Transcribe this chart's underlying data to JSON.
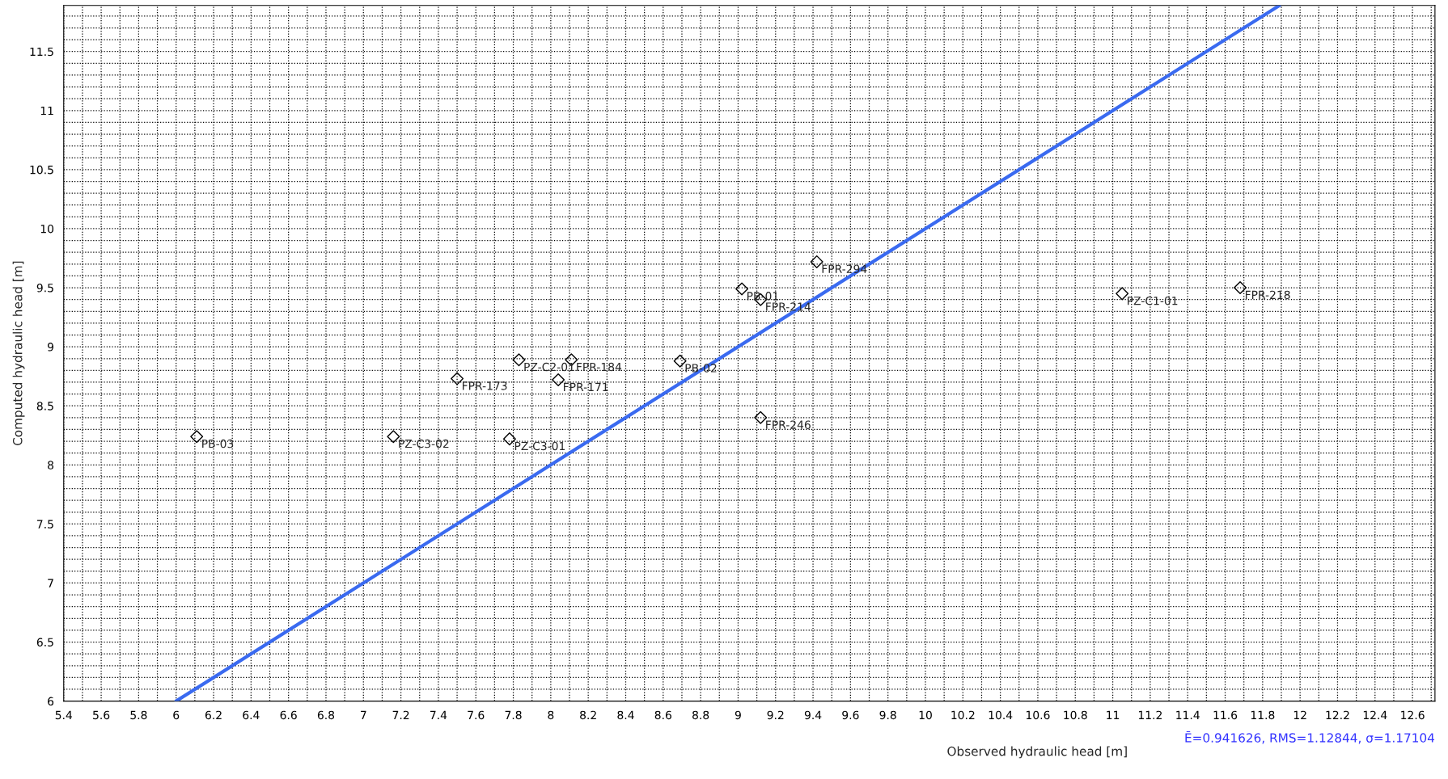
{
  "chart_data": {
    "type": "scatter",
    "xlabel": "Observed hydraulic head [m]",
    "ylabel": "Computed hydraulic head [m]",
    "x": [
      6.11,
      7.16,
      7.78,
      7.5,
      7.83,
      8.11,
      8.04,
      8.69,
      9.02,
      9.12,
      9.42,
      9.12,
      11.05,
      11.68
    ],
    "series": [
      {
        "color": "#000000",
        "marker": "diamond",
        "values": [
          8.24,
          8.24,
          8.22,
          8.73,
          8.89,
          8.89,
          8.72,
          8.88,
          9.49,
          9.4,
          9.72,
          8.4,
          9.45,
          9.5
        ],
        "value_labels": [
          "PB-03",
          "PZ-C3-02",
          "PZ-C3-01",
          "FPR-173",
          "PZ-C2-01",
          "FPR-184",
          "FPR-171",
          "PB-02",
          "PB-01",
          "FPR-214",
          "FPR-294",
          "FPR-246",
          "PZ-C1-01",
          "FPR-218"
        ]
      },
      {
        "type": "line",
        "color": "#3a6af0",
        "x": [
          6,
          11.89
        ],
        "values": [
          6,
          11.89
        ]
      }
    ],
    "annotations": [
      "Ē=0.941626, RMS=1.12844, σ=1.17104"
    ],
    "xlim": [
      5.4,
      12.72
    ],
    "ylim": [
      6,
      11.89
    ],
    "grid": true,
    "xticks": [
      5.4,
      {
        "value": 5.5,
        "label": null
      },
      5.6,
      {
        "value": 5.7,
        "label": null
      },
      5.8,
      {
        "value": 5.9,
        "label": null
      },
      6,
      {
        "value": 6.1,
        "label": null
      },
      6.2,
      {
        "value": 6.3,
        "label": null
      },
      6.4,
      {
        "value": 6.5,
        "label": null
      },
      6.6,
      {
        "value": 6.7,
        "label": null
      },
      6.8,
      {
        "value": 6.9,
        "label": null
      },
      7,
      {
        "value": 7.1,
        "label": null
      },
      7.2,
      {
        "value": 7.3,
        "label": null
      },
      7.4,
      {
        "value": 7.5,
        "label": null
      },
      7.6,
      {
        "value": 7.7,
        "label": null
      },
      7.8,
      {
        "value": 7.9,
        "label": null
      },
      8,
      {
        "value": 8.1,
        "label": null
      },
      8.2,
      {
        "value": 8.3,
        "label": null
      },
      8.4,
      {
        "value": 8.5,
        "label": null
      },
      8.6,
      {
        "value": 8.7,
        "label": null
      },
      8.8,
      {
        "value": 8.9,
        "label": null
      },
      9,
      {
        "value": 9.1,
        "label": null
      },
      9.2,
      {
        "value": 9.3,
        "label": null
      },
      9.4,
      {
        "value": 9.5,
        "label": null
      },
      9.6,
      {
        "value": 9.7,
        "label": null
      },
      9.8,
      {
        "value": 9.9,
        "label": null
      },
      10,
      {
        "value": 10.1,
        "label": null
      },
      10.2,
      {
        "value": 10.3,
        "label": null
      },
      10.4,
      {
        "value": 10.5,
        "label": null
      },
      10.6,
      {
        "value": 10.7,
        "label": null
      },
      10.8,
      {
        "value": 10.9,
        "label": null
      },
      11,
      {
        "value": 11.1,
        "label": null
      },
      11.2,
      {
        "value": 11.3,
        "label": null
      },
      11.4,
      {
        "value": 11.5,
        "label": null
      },
      11.6,
      {
        "value": 11.7,
        "label": null
      },
      11.8,
      {
        "value": 11.9,
        "label": null
      },
      12,
      {
        "value": 12.1,
        "label": null
      },
      12.2,
      {
        "value": 12.3,
        "label": null
      },
      12.4,
      {
        "value": 12.5,
        "label": null
      },
      12.6,
      {
        "value": 12.7,
        "label": null
      }
    ],
    "yticks": [
      6,
      {
        "value": 6.1,
        "label": null
      },
      {
        "value": 6.2,
        "label": null
      },
      {
        "value": 6.3,
        "label": null
      },
      {
        "value": 6.4,
        "label": null
      },
      6.5,
      {
        "value": 6.6,
        "label": null
      },
      {
        "value": 6.7,
        "label": null
      },
      {
        "value": 6.8,
        "label": null
      },
      {
        "value": 6.9,
        "label": null
      },
      7,
      {
        "value": 7.1,
        "label": null
      },
      {
        "value": 7.2,
        "label": null
      },
      {
        "value": 7.3,
        "label": null
      },
      {
        "value": 7.4,
        "label": null
      },
      7.5,
      {
        "value": 7.6,
        "label": null
      },
      {
        "value": 7.7,
        "label": null
      },
      {
        "value": 7.8,
        "label": null
      },
      {
        "value": 7.9,
        "label": null
      },
      8,
      {
        "value": 8.1,
        "label": null
      },
      {
        "value": 8.2,
        "label": null
      },
      {
        "value": 8.3,
        "label": null
      },
      {
        "value": 8.4,
        "label": null
      },
      8.5,
      {
        "value": 8.6,
        "label": null
      },
      {
        "value": 8.7,
        "label": null
      },
      {
        "value": 8.8,
        "label": null
      },
      {
        "value": 8.9,
        "label": null
      },
      9,
      {
        "value": 9.1,
        "label": null
      },
      {
        "value": 9.2,
        "label": null
      },
      {
        "value": 9.3,
        "label": null
      },
      {
        "value": 9.4,
        "label": null
      },
      9.5,
      {
        "value": 9.6,
        "label": null
      },
      {
        "value": 9.7,
        "label": null
      },
      {
        "value": 9.8,
        "label": null
      },
      {
        "value": 9.9,
        "label": null
      },
      10,
      {
        "value": 10.1,
        "label": null
      },
      {
        "value": 10.2,
        "label": null
      },
      {
        "value": 10.3,
        "label": null
      },
      {
        "value": 10.4,
        "label": null
      },
      10.5,
      {
        "value": 10.6,
        "label": null
      },
      {
        "value": 10.7,
        "label": null
      },
      {
        "value": 10.8,
        "label": null
      },
      {
        "value": 10.9,
        "label": null
      },
      11,
      {
        "value": 11.1,
        "label": null
      },
      {
        "value": 11.2,
        "label": null
      },
      {
        "value": 11.3,
        "label": null
      },
      {
        "value": 11.4,
        "label": null
      },
      11.5,
      {
        "value": 11.6,
        "label": null
      },
      {
        "value": 11.7,
        "label": null
      },
      {
        "value": 11.8,
        "label": null
      }
    ]
  }
}
